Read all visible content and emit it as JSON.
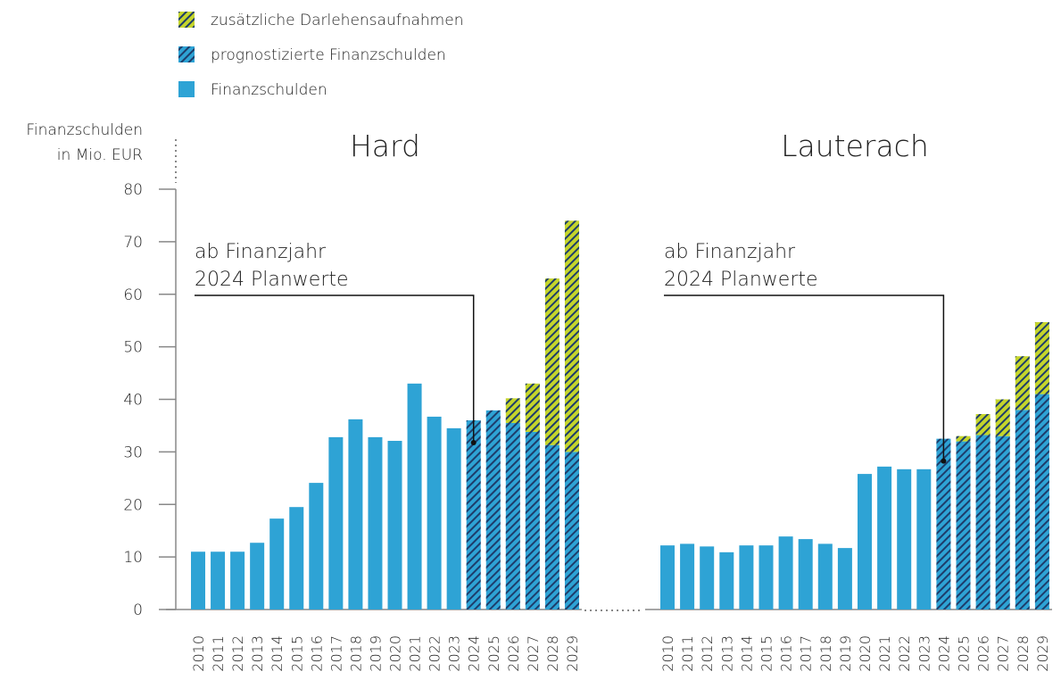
{
  "chart_data": {
    "type": "bar",
    "stacked": true,
    "ylabel": [
      "Finanzschulden",
      "in Mio. EUR"
    ],
    "ylim": [
      0,
      80
    ],
    "yticks": [
      0,
      10,
      20,
      30,
      40,
      50,
      60,
      70,
      80
    ],
    "series": [
      {
        "name": "Finanzschulden",
        "color": "#2ea3d5",
        "hatch": false
      },
      {
        "name": "prognostizierte Finanzschulden",
        "color": "#2ea3d5",
        "hatch": true
      },
      {
        "name": "zusätzliche Darlehensaufnahmen",
        "color": "#c5d52b",
        "hatch": true
      }
    ],
    "panels": [
      {
        "title": "Hard",
        "annotation": [
          "ab Finanzjahr",
          "2024 Planwerte"
        ],
        "categories": [
          "2010",
          "2011",
          "2012",
          "2013",
          "2014",
          "2015",
          "2016",
          "2017",
          "2018",
          "2019",
          "2020",
          "2021",
          "2022",
          "2023",
          "2024",
          "2025",
          "2026",
          "2027",
          "2028",
          "2029"
        ],
        "values": [
          [
            11,
            11,
            11,
            12.7,
            17.3,
            19.5,
            24.1,
            32.8,
            36.2,
            32.8,
            32.1,
            43,
            36.7,
            34.5,
            null,
            null,
            null,
            null,
            null,
            null
          ],
          [
            null,
            null,
            null,
            null,
            null,
            null,
            null,
            null,
            null,
            null,
            null,
            null,
            null,
            null,
            36,
            37.9,
            35.5,
            33.8,
            31.3,
            30
          ],
          [
            null,
            null,
            null,
            null,
            null,
            null,
            null,
            null,
            null,
            null,
            null,
            null,
            null,
            null,
            null,
            null,
            4.7,
            9.2,
            31.7,
            44
          ]
        ]
      },
      {
        "title": "Lauterach",
        "annotation": [
          "ab Finanzjahr",
          "2024 Planwerte"
        ],
        "categories": [
          "2010",
          "2011",
          "2012",
          "2013",
          "2014",
          "2015",
          "2016",
          "2017",
          "2018",
          "2019",
          "2020",
          "2021",
          "2022",
          "2023",
          "2024",
          "2025",
          "2026",
          "2027",
          "2028",
          "2029"
        ],
        "values": [
          [
            12.2,
            12.5,
            12,
            10.9,
            12.2,
            12.2,
            13.9,
            13.4,
            12.5,
            11.7,
            25.8,
            27.2,
            26.7,
            26.7,
            null,
            null,
            null,
            null,
            null,
            null
          ],
          [
            null,
            null,
            null,
            null,
            null,
            null,
            null,
            null,
            null,
            null,
            null,
            null,
            null,
            null,
            32.5,
            32,
            33.2,
            33,
            38,
            41
          ],
          [
            null,
            null,
            null,
            null,
            null,
            null,
            null,
            null,
            null,
            null,
            null,
            null,
            null,
            null,
            null,
            1,
            4,
            7,
            10.2,
            13.7
          ]
        ]
      }
    ]
  }
}
